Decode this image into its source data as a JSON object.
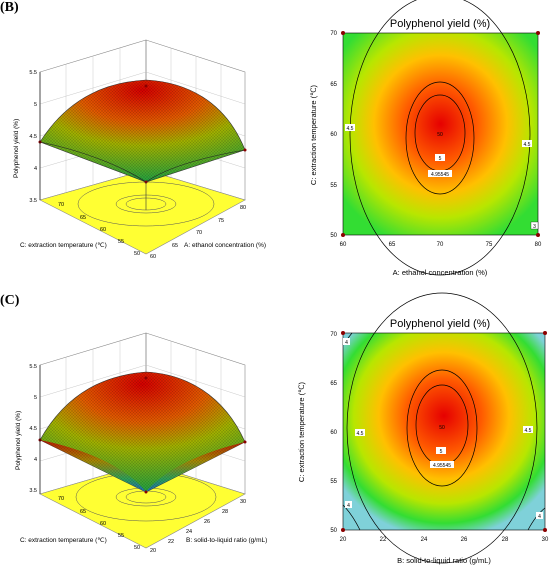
{
  "panels": [
    {
      "label": "(B)",
      "surface": {
        "zlabel": "Polyphenol  yield (%)",
        "zticks": [
          "3.5",
          "4",
          "4.5",
          "5",
          "5.5"
        ],
        "xlabel": "A: ethanol concentration (%)",
        "xticks": [
          "60",
          "65",
          "70",
          "75",
          "80"
        ],
        "ylabel": "C: extraction temperature (℃)",
        "yticks": [
          "50",
          "55",
          "60",
          "65",
          "70"
        ]
      },
      "contour": {
        "title": "Polyphenol  yield (%)",
        "xlabel": "A: ethanol concentration (%)",
        "xticks": [
          "60",
          "65",
          "70",
          "75",
          "80"
        ],
        "ylabel": "C: extraction temperature (℃)",
        "yticks": [
          "50",
          "55",
          "60",
          "65",
          "70"
        ],
        "labels": [
          "4.5",
          "4.5",
          "5",
          "4.95545",
          "50",
          "3"
        ]
      }
    },
    {
      "label": "(C)",
      "surface": {
        "zlabel": "Polyphenol  yield (%)",
        "zticks": [
          "3.5",
          "4",
          "4.5",
          "5",
          "5.5"
        ],
        "xlabel": "B: solid-to-liquid ratio (g/mL)",
        "xticks": [
          "20",
          "22",
          "24",
          "26",
          "28",
          "30"
        ],
        "ylabel": "C: extraction temperature (℃)",
        "yticks": [
          "50",
          "55",
          "60",
          "65",
          "70"
        ]
      },
      "contour": {
        "title": "Polyphenol  yield (%)",
        "xlabel": "B: solid-to-liquid ratio (g/mL)",
        "xticks": [
          "20",
          "22",
          "24",
          "26",
          "28",
          "30"
        ],
        "ylabel": "C: extraction temperature (℃)",
        "yticks": [
          "50",
          "55",
          "60",
          "65",
          "70"
        ],
        "labels": [
          "4",
          "4.5",
          "4.5",
          "5",
          "4.95545",
          "50",
          "4",
          "4"
        ]
      }
    }
  ],
  "colors": {
    "center": "#e60000",
    "mid": "#ff8c00",
    "outer": "#33dd33",
    "edge": "#7fd1d9",
    "floor": "#ffff33"
  },
  "chart_data": {
    "type": "heatmap",
    "description_units": "Polyphenol yield (%)",
    "series": [
      {
        "x_range": [
          60,
          80
        ],
        "y_range": [
          50,
          70
        ],
        "contour_levels": [
          4.5,
          4.95545,
          5
        ],
        "optimum_x": 70,
        "optimum_y": 60
      },
      {
        "x_range": [
          20,
          30
        ],
        "y_range": [
          50,
          70
        ],
        "contour_levels": [
          4,
          4.5,
          4.95545,
          5
        ],
        "optimum_x": 25,
        "optimum_y": 60
      }
    ]
  }
}
